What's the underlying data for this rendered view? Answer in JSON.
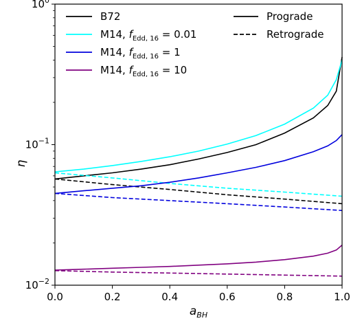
{
  "chart_data": {
    "type": "line",
    "xlabel_main": "a",
    "xlabel_sub": "BH",
    "ylabel": "η",
    "xlim": [
      0.0,
      1.0
    ],
    "ylim": [
      0.01,
      1.0
    ],
    "yscale": "log",
    "x_ticks": [
      "0.0",
      "0.2",
      "0.4",
      "0.6",
      "0.8",
      "1.0"
    ],
    "y_ticks": [
      {
        "base": "10",
        "exp": "−2",
        "value": 0.01
      },
      {
        "base": "10",
        "exp": "−1",
        "value": 0.1
      },
      {
        "base": "10",
        "exp": "0",
        "value": 1.0
      }
    ],
    "series": [
      {
        "name": "B72",
        "color": "#000000",
        "style": "solid",
        "x": [
          0.0,
          0.1,
          0.2,
          0.3,
          0.4,
          0.5,
          0.6,
          0.7,
          0.8,
          0.9,
          0.95,
          0.98,
          1.0
        ],
        "y": [
          0.057,
          0.06,
          0.063,
          0.067,
          0.072,
          0.079,
          0.088,
          0.1,
          0.121,
          0.155,
          0.19,
          0.24,
          0.42
        ]
      },
      {
        "name": "B72",
        "color": "#000000",
        "style": "dashed",
        "x": [
          0.0,
          0.2,
          0.4,
          0.6,
          0.8,
          1.0
        ],
        "y": [
          0.057,
          0.052,
          0.048,
          0.044,
          0.041,
          0.038
        ]
      },
      {
        "name": "M14, f_Edd,16 = 0.01",
        "color": "#00ffff",
        "style": "solid",
        "x": [
          0.0,
          0.1,
          0.2,
          0.3,
          0.4,
          0.5,
          0.6,
          0.7,
          0.8,
          0.9,
          0.95,
          0.98,
          1.0
        ],
        "y": [
          0.064,
          0.067,
          0.071,
          0.076,
          0.082,
          0.09,
          0.101,
          0.116,
          0.14,
          0.182,
          0.225,
          0.29,
          0.4
        ]
      },
      {
        "name": "M14, f_Edd,16 = 0.01",
        "color": "#00ffff",
        "style": "dashed",
        "x": [
          0.0,
          0.2,
          0.4,
          0.6,
          0.8,
          1.0
        ],
        "y": [
          0.063,
          0.058,
          0.053,
          0.049,
          0.046,
          0.043
        ]
      },
      {
        "name": "M14, f_Edd,16 = 1",
        "color": "#0000dd",
        "style": "solid",
        "x": [
          0.0,
          0.1,
          0.2,
          0.3,
          0.4,
          0.5,
          0.6,
          0.7,
          0.8,
          0.9,
          0.95,
          0.98,
          1.0
        ],
        "y": [
          0.045,
          0.047,
          0.049,
          0.051,
          0.054,
          0.058,
          0.063,
          0.069,
          0.077,
          0.089,
          0.098,
          0.107,
          0.118
        ]
      },
      {
        "name": "M14, f_Edd,16 = 1",
        "color": "#0000dd",
        "style": "dashed",
        "x": [
          0.0,
          0.2,
          0.4,
          0.6,
          0.8,
          1.0
        ],
        "y": [
          0.045,
          0.042,
          0.04,
          0.038,
          0.036,
          0.034
        ]
      },
      {
        "name": "M14, f_Edd,16 = 10",
        "color": "#800080",
        "style": "solid",
        "x": [
          0.0,
          0.1,
          0.2,
          0.3,
          0.4,
          0.5,
          0.6,
          0.7,
          0.8,
          0.9,
          0.95,
          0.98,
          1.0
        ],
        "y": [
          0.0128,
          0.013,
          0.0132,
          0.0134,
          0.0136,
          0.0139,
          0.0142,
          0.0146,
          0.0152,
          0.0161,
          0.0169,
          0.0178,
          0.0193
        ]
      },
      {
        "name": "M14, f_Edd,16 = 10",
        "color": "#800080",
        "style": "dashed",
        "x": [
          0.0,
          0.2,
          0.4,
          0.6,
          0.8,
          1.0
        ],
        "y": [
          0.0127,
          0.0124,
          0.0122,
          0.012,
          0.0118,
          0.0116
        ]
      }
    ],
    "legend": {
      "placement": "top",
      "entries": [
        {
          "label": "B72",
          "color": "#000000",
          "style": "solid"
        },
        {
          "label_main": "M14, ",
          "label_f": "f",
          "label_sub": "Edd, 16",
          "label_val": " = 0.01",
          "color": "#00ffff",
          "style": "solid"
        },
        {
          "label_main": "M14, ",
          "label_f": "f",
          "label_sub": "Edd, 16",
          "label_val": " = 1",
          "color": "#0000dd",
          "style": "solid"
        },
        {
          "label_main": "M14, ",
          "label_f": "f",
          "label_sub": "Edd, 16",
          "label_val": " = 10",
          "color": "#800080",
          "style": "solid"
        }
      ],
      "style_entries": [
        {
          "label": "Prograde",
          "style": "solid"
        },
        {
          "label": "Retrograde",
          "style": "dashed"
        }
      ]
    }
  }
}
